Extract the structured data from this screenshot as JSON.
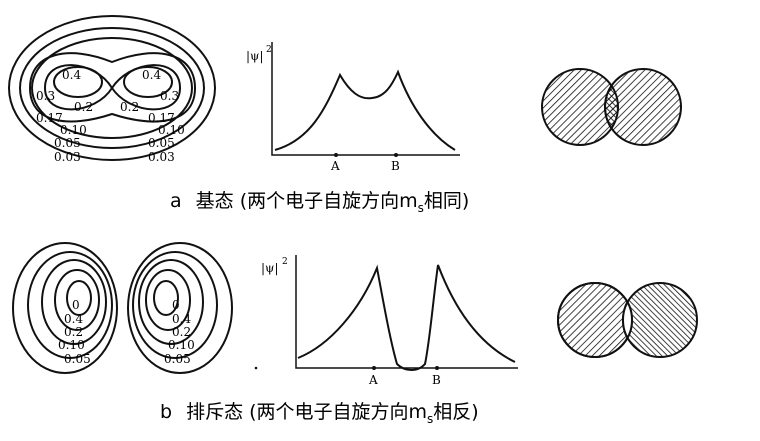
{
  "panel_a": {
    "contour_labels": [
      "0.4",
      "0.4",
      "0.3",
      "0.3",
      "0.2",
      "0.2",
      "0.17",
      "0.17",
      "0.10",
      "0.10",
      "0.05",
      "0.05",
      "0.03",
      "0.03"
    ],
    "axis_label": "|ψ|",
    "axis_label_power": "2",
    "point_a": "A",
    "point_b": "B",
    "caption": {
      "letter": "a",
      "text": "基态 (两个电子自旋方向m",
      "subscript": "s",
      "suffix": "相同)"
    }
  },
  "panel_b": {
    "left_labels": [
      "0",
      "0.4",
      "0.2",
      "0.10",
      "0.05"
    ],
    "right_labels": [
      "0",
      "0.4",
      "0.2",
      "0.10",
      "0.05"
    ],
    "axis_label": "|ψ|",
    "axis_label_power": "2",
    "point_a": "A",
    "point_b": "B",
    "caption": {
      "letter": "b",
      "text": "排斥态 (两个电子自旋方向m",
      "subscript": "s",
      "suffix": "相反)"
    }
  }
}
